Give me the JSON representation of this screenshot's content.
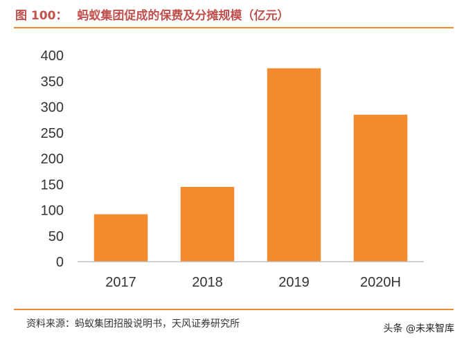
{
  "header": {
    "figure_no": "图 100：",
    "title": "蚂蚁集团促成的保费及分摊规模（亿元）"
  },
  "footer": {
    "source": "资料来源：蚂蚁集团招股说明书，天风证券研究所",
    "watermark": "头条 @未来智库"
  },
  "colors": {
    "bar": "#f28a2e",
    "rule": "#f28a2e",
    "title": "#c0504d"
  },
  "chart_data": {
    "type": "bar",
    "title": "蚂蚁集团促成的保费及分摊规模（亿元）",
    "categories": [
      "2017",
      "2018",
      "2019",
      "2020H"
    ],
    "values": [
      92,
      145,
      375,
      285
    ],
    "ylim": [
      0,
      400
    ],
    "yticks": [
      0,
      50,
      100,
      150,
      200,
      250,
      300,
      350,
      400
    ],
    "grid": false,
    "legend": "none"
  }
}
